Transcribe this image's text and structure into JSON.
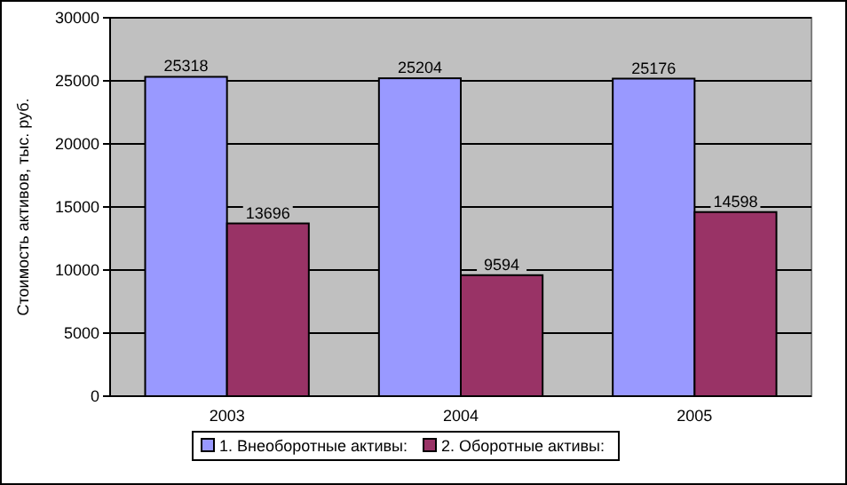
{
  "chart_data": {
    "type": "bar",
    "ylabel": "Стоимость активов, тыс. руб.",
    "categories": [
      "2003",
      "2004",
      "2005"
    ],
    "series": [
      {
        "name": "1. Внеоборотные активы:",
        "color": "#9999ff",
        "values": [
          25318,
          25204,
          25176
        ]
      },
      {
        "name": "2. Оборотные активы:",
        "color": "#993366",
        "values": [
          13696,
          9594,
          14598
        ]
      }
    ],
    "ylim": [
      0,
      30000
    ],
    "yticks": [
      0,
      5000,
      10000,
      15000,
      20000,
      25000,
      30000
    ],
    "grid": "y",
    "legend": "bottom",
    "data_labels": true
  }
}
